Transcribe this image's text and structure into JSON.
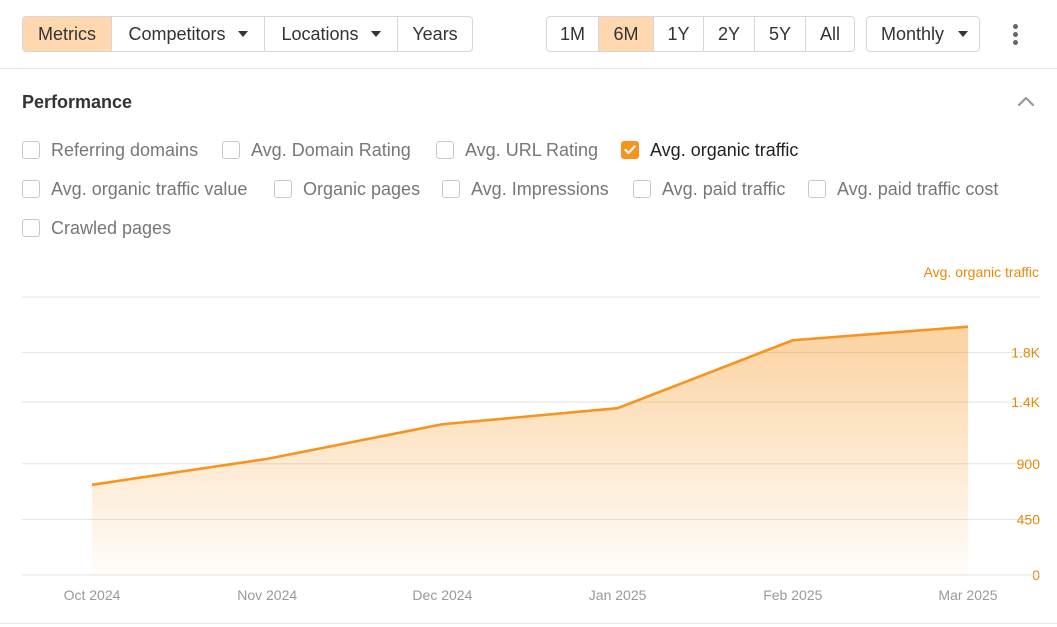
{
  "toolbar": {
    "tabs": [
      {
        "label": "Metrics",
        "active": true,
        "dropdown": false
      },
      {
        "label": "Competitors",
        "active": false,
        "dropdown": true
      },
      {
        "label": "Locations",
        "active": false,
        "dropdown": true
      },
      {
        "label": "Years",
        "active": false,
        "dropdown": false
      }
    ],
    "ranges": [
      {
        "label": "1M",
        "active": false
      },
      {
        "label": "6M",
        "active": true
      },
      {
        "label": "1Y",
        "active": false
      },
      {
        "label": "2Y",
        "active": false
      },
      {
        "label": "5Y",
        "active": false
      },
      {
        "label": "All",
        "active": false
      }
    ],
    "interval": "Monthly",
    "more_icon": "kebab-menu-icon"
  },
  "performance": {
    "title": "Performance",
    "collapse_icon": "chevron-up-icon",
    "metrics": [
      {
        "label": "Referring domains",
        "checked": false
      },
      {
        "label": "Avg. Domain Rating",
        "checked": false
      },
      {
        "label": "Avg. URL Rating",
        "checked": false
      },
      {
        "label": "Avg. organic traffic",
        "checked": true
      },
      {
        "label": "Avg. organic traffic value",
        "checked": false
      },
      {
        "label": "Organic pages",
        "checked": false
      },
      {
        "label": "Avg. Impressions",
        "checked": false
      },
      {
        "label": "Avg. paid traffic",
        "checked": false
      },
      {
        "label": "Avg. paid traffic cost",
        "checked": false
      },
      {
        "label": "Crawled pages",
        "checked": false
      }
    ]
  },
  "colors": {
    "accent": "#f7941d",
    "active_bg": "#ffd8b0",
    "axis_text": "#e8890c",
    "tick_text": "#999999"
  },
  "chart_data": {
    "type": "area",
    "x": [
      "Oct 2024",
      "Nov 2024",
      "Dec 2024",
      "Jan 2025",
      "Feb 2025",
      "Mar 2025"
    ],
    "series": [
      {
        "name": "Avg. organic traffic",
        "values": [
          730,
          940,
          1220,
          1350,
          1900,
          2010
        ]
      }
    ],
    "y_axis": {
      "title": "Avg. organic traffic",
      "ticks": [
        0,
        450,
        900,
        1400,
        1800
      ],
      "tick_labels": [
        "0",
        "450",
        "900",
        "1.4K",
        "1.8K"
      ],
      "position": "right"
    },
    "grid": true
  }
}
